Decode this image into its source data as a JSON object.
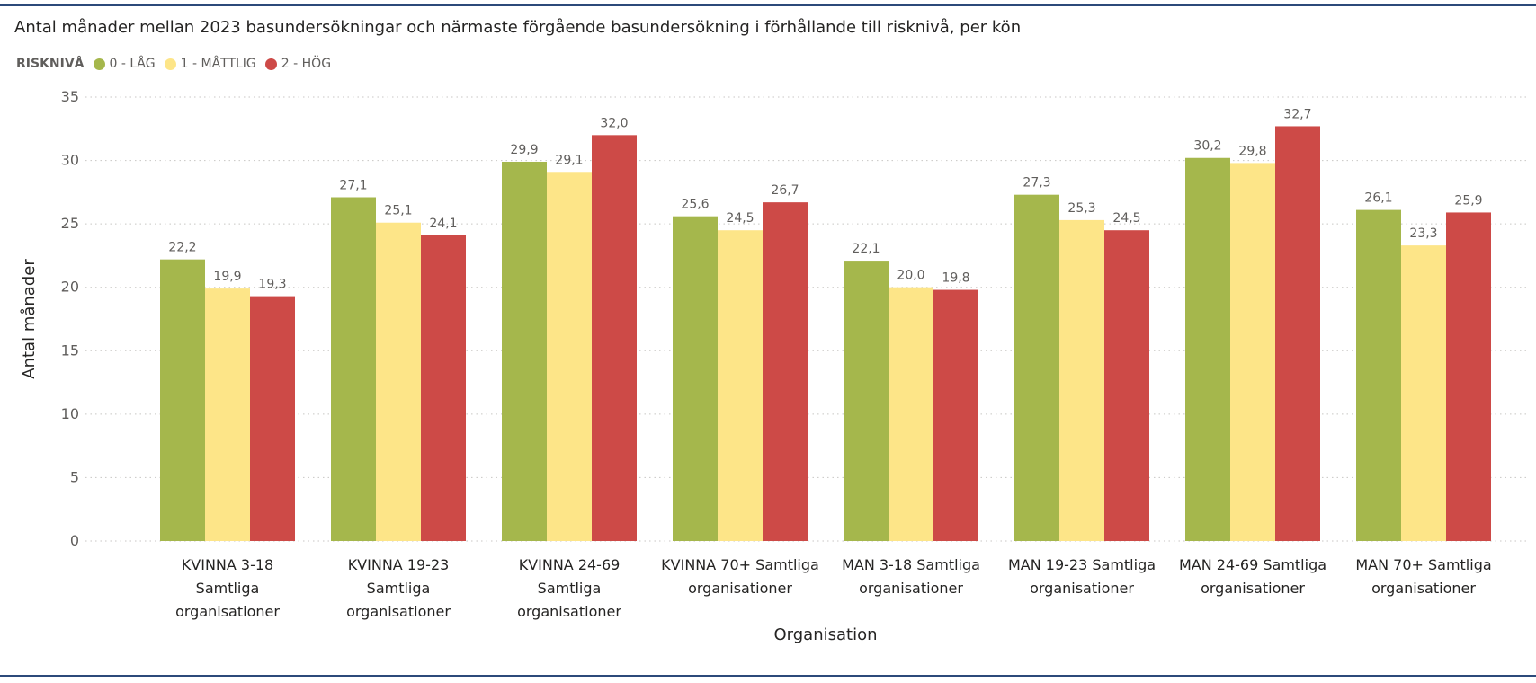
{
  "chart_data": {
    "type": "bar",
    "title": "Antal månader mellan 2023 basundersökningar och närmaste förgående basundersökning i förhållande till risknivå, per kön",
    "legend_title": "RISKNIVÅ",
    "legend_position": "top-left",
    "xlabel": "Organisation",
    "ylabel": "Antal månader",
    "ylim": [
      0,
      35
    ],
    "yticks": [
      "0",
      "5",
      "10",
      "15",
      "20",
      "25",
      "30",
      "35"
    ],
    "grid": true,
    "categories": [
      [
        "KVINNA 3-18",
        "Samtliga",
        "organisationer"
      ],
      [
        "KVINNA 19-23",
        "Samtliga",
        "organisationer"
      ],
      [
        "KVINNA 24-69",
        "Samtliga",
        "organisationer"
      ],
      [
        "KVINNA 70+ Samtliga",
        "organisationer"
      ],
      [
        "MAN 3-18 Samtliga",
        "organisationer"
      ],
      [
        "MAN 19-23 Samtliga",
        "organisationer"
      ],
      [
        "MAN 24-69 Samtliga",
        "organisationer"
      ],
      [
        "MAN 70+ Samtliga",
        "organisationer"
      ]
    ],
    "series": [
      {
        "name": "0 - LÅG",
        "color": "#a5b74c",
        "values": [
          22.2,
          27.1,
          29.9,
          25.6,
          22.1,
          27.3,
          30.2,
          26.1
        ],
        "labels": [
          "22,2",
          "27,1",
          "29,9",
          "25,6",
          "22,1",
          "27,3",
          "30,2",
          "26,1"
        ]
      },
      {
        "name": "1 - MÅTTLIG",
        "color": "#fde588",
        "values": [
          19.9,
          25.1,
          29.1,
          24.5,
          20.0,
          25.3,
          29.8,
          23.3
        ],
        "labels": [
          "19,9",
          "25,1",
          "29,1",
          "24,5",
          "20,0",
          "25,3",
          "29,8",
          "23,3"
        ]
      },
      {
        "name": "2 - HÖG",
        "color": "#cd4a47",
        "values": [
          19.3,
          24.1,
          32.0,
          26.7,
          19.8,
          24.5,
          32.7,
          25.9
        ],
        "labels": [
          "19,3",
          "24,1",
          "32,0",
          "26,7",
          "19,8",
          "24,5",
          "32,7",
          "25,9"
        ]
      }
    ]
  }
}
